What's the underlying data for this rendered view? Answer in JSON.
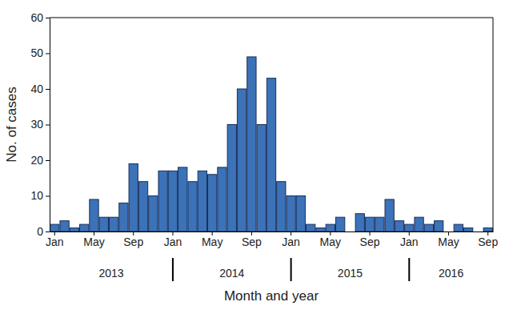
{
  "chart_data": {
    "type": "bar",
    "x_label": "Month and year",
    "y_label": "No. of cases",
    "categories": [
      "Jan",
      null,
      null,
      null,
      "May",
      null,
      null,
      null,
      "Sep",
      null,
      null,
      null,
      "Jan",
      null,
      null,
      null,
      "May",
      null,
      null,
      null,
      "Sep",
      null,
      null,
      null,
      "Jan",
      null,
      null,
      null,
      "May",
      null,
      null,
      null,
      "Sep",
      null,
      null,
      null,
      "Jan",
      null,
      null,
      null,
      "May",
      null,
      null,
      null,
      "Sep"
    ],
    "values": [
      2,
      3,
      1,
      2,
      9,
      4,
      4,
      8,
      19,
      14,
      10,
      17,
      17,
      18,
      14,
      17,
      16,
      18,
      30,
      40,
      49,
      30,
      43,
      14,
      10,
      10,
      2,
      1,
      2,
      4,
      0,
      5,
      4,
      4,
      9,
      3,
      2,
      4,
      2,
      3,
      0,
      2,
      1,
      0,
      1
    ],
    "groups": [
      {
        "label": "2013",
        "start": 0,
        "end": 11
      },
      {
        "label": "2014",
        "start": 12,
        "end": 23
      },
      {
        "label": "2015",
        "start": 24,
        "end": 35
      },
      {
        "label": "2016",
        "start": 36,
        "end": 44
      }
    ],
    "color": "#3b72b8",
    "ylim": [
      0,
      60
    ],
    "yticks": [
      0,
      10,
      20,
      30,
      40,
      50,
      60
    ],
    "grid": false
  }
}
